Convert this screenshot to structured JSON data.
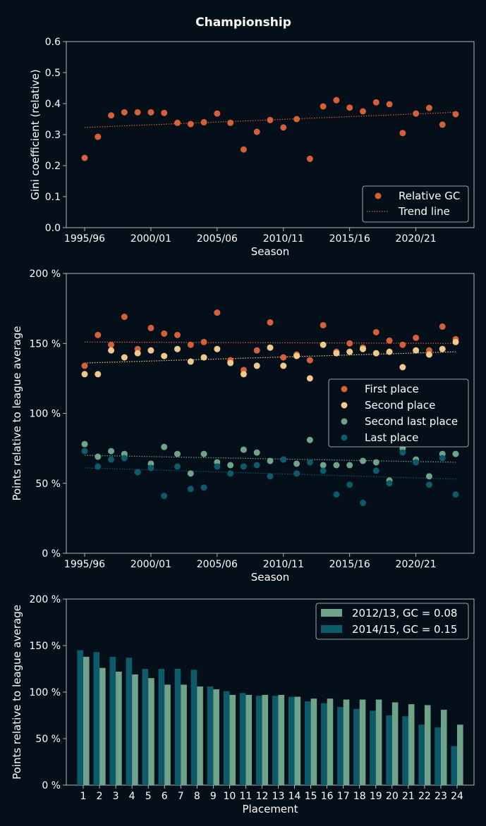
{
  "title": "Championship",
  "colors": {
    "background": "#050f19",
    "axes": "#dddddd",
    "first": "#d4603a",
    "second": "#f0c98c",
    "second_last": "#6fa38a",
    "last": "#0c5a6a",
    "bar_2012": "#6fa38a",
    "bar_2014": "#0c5a6a"
  },
  "chart_data": [
    {
      "type": "scatter",
      "title": "",
      "xlabel": "Season",
      "ylabel": "Gini coefficient (relative)",
      "ylim": [
        0,
        0.6
      ],
      "yticks": [
        0,
        0.1,
        0.2,
        0.3,
        0.4,
        0.5,
        0.6
      ],
      "ytick_labels": [
        "0.0",
        "0.1",
        "0.2",
        "0.3",
        "0.4",
        "0.5",
        "0.6"
      ],
      "xtick_labels": [
        "1995/96",
        "2000/01",
        "2005/06",
        "2010/11",
        "2015/16",
        "2020/21"
      ],
      "xtick_index": [
        0,
        5,
        10,
        15,
        20,
        25
      ],
      "legend": [
        "Relative GC",
        "Trend line"
      ],
      "series": [
        {
          "name": "Relative GC",
          "values": [
            0.225,
            0.293,
            0.362,
            0.372,
            0.372,
            0.372,
            0.37,
            0.338,
            0.334,
            0.34,
            0.368,
            0.338,
            0.252,
            0.309,
            0.347,
            0.323,
            0.35,
            0.222,
            0.391,
            0.411,
            0.387,
            0.375,
            0.404,
            0.398,
            0.305,
            0.368,
            0.386,
            0.332,
            0.366
          ]
        }
      ],
      "trend": {
        "name": "Trend line",
        "start": 0.323,
        "end": 0.372
      }
    },
    {
      "type": "scatter",
      "title": "",
      "xlabel": "Season",
      "ylabel": "Points relative to league average",
      "ylim": [
        0,
        200
      ],
      "yticks": [
        0,
        50,
        100,
        150,
        200
      ],
      "ytick_labels": [
        "0 %",
        "50 %",
        "100 %",
        "150 %",
        "200 %"
      ],
      "xtick_labels": [
        "1995/96",
        "2000/01",
        "2005/06",
        "2010/11",
        "2015/16",
        "2020/21"
      ],
      "xtick_index": [
        0,
        5,
        10,
        15,
        20,
        25
      ],
      "legend": [
        "First place",
        "Second place",
        "Second last place",
        "Last place"
      ],
      "series": [
        {
          "name": "First place",
          "key": "first",
          "values": [
            134,
            156,
            149,
            169,
            146,
            161,
            157,
            156,
            149,
            151,
            172,
            138,
            131,
            145,
            165,
            140,
            142,
            138,
            163,
            144,
            150,
            147,
            158,
            152,
            149,
            154,
            145,
            162,
            153
          ],
          "trend": [
            151,
            150
          ]
        },
        {
          "name": "Second place",
          "key": "second",
          "values": [
            128,
            128,
            145,
            140,
            143,
            145,
            141,
            146,
            137,
            140,
            146,
            136,
            128,
            134,
            147,
            134,
            141,
            125,
            149,
            143,
            144,
            146,
            143,
            144,
            133,
            145,
            142,
            146,
            151
          ],
          "trend": [
            136,
            144
          ]
        },
        {
          "name": "Second last place",
          "key": "second_last",
          "values": [
            78,
            69,
            73,
            71,
            58,
            64,
            76,
            71,
            57,
            71,
            65,
            63,
            74,
            72,
            66,
            67,
            64,
            81,
            63,
            63,
            63,
            66,
            65,
            52,
            75,
            67,
            55,
            71,
            71
          ],
          "trend": [
            70,
            65
          ]
        },
        {
          "name": "Last place",
          "key": "last",
          "values": [
            73,
            62,
            67,
            68,
            58,
            61,
            41,
            62,
            46,
            47,
            62,
            57,
            62,
            63,
            55,
            67,
            57,
            65,
            59,
            42,
            49,
            36,
            59,
            50,
            72,
            65,
            49,
            68,
            42
          ],
          "trend": [
            61,
            53
          ]
        }
      ]
    },
    {
      "type": "bar",
      "title": "",
      "xlabel": "Placement",
      "ylabel": "Points relative to league average",
      "ylim": [
        0,
        200
      ],
      "yticks": [
        0,
        50,
        100,
        150,
        200
      ],
      "ytick_labels": [
        "0 %",
        "50 %",
        "100 %",
        "150 %",
        "200 %"
      ],
      "categories": [
        "1",
        "2",
        "3",
        "4",
        "5",
        "6",
        "7",
        "8",
        "9",
        "10",
        "11",
        "12",
        "13",
        "14",
        "15",
        "16",
        "17",
        "18",
        "19",
        "20",
        "21",
        "22",
        "23",
        "24"
      ],
      "legend": [
        "2012/13, GC = 0.08",
        "2014/15, GC = 0.15"
      ],
      "series": [
        {
          "name": "2012/13, GC = 0.08",
          "key": "bar_2012",
          "values": [
            138,
            126,
            122,
            119,
            115,
            108,
            108,
            106,
            103,
            97,
            97,
            97,
            97,
            95,
            93,
            93,
            92,
            92,
            92,
            89,
            87,
            86,
            81,
            65
          ]
        },
        {
          "name": "2014/15, GC = 0.15",
          "key": "bar_2014",
          "values": [
            145,
            143,
            138,
            137,
            125,
            125,
            125,
            124,
            106,
            101,
            99,
            96,
            96,
            95,
            90,
            88,
            84,
            82,
            80,
            75,
            74,
            65,
            62,
            42
          ]
        }
      ]
    }
  ]
}
